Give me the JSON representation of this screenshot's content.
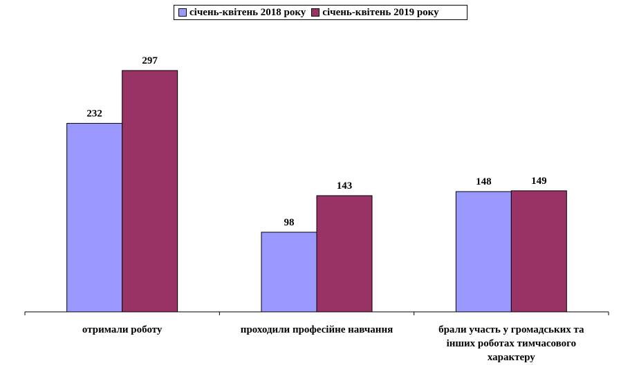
{
  "chart_data": {
    "type": "bar",
    "categories": [
      [
        "отримали роботу"
      ],
      [
        "проходили професійне навчання"
      ],
      [
        "брали участь у громадських та",
        "інших роботах тимчасового",
        "характеру"
      ]
    ],
    "series": [
      {
        "name": "січень-квітень 2018 року",
        "values": [
          232,
          98,
          148
        ],
        "color": "#9999ff"
      },
      {
        "name": "січень-квітень 2019 року",
        "values": [
          297,
          143,
          149
        ],
        "color": "#993366"
      }
    ],
    "ylim": [
      0,
      340
    ],
    "grid": false,
    "legend_position": "top"
  }
}
